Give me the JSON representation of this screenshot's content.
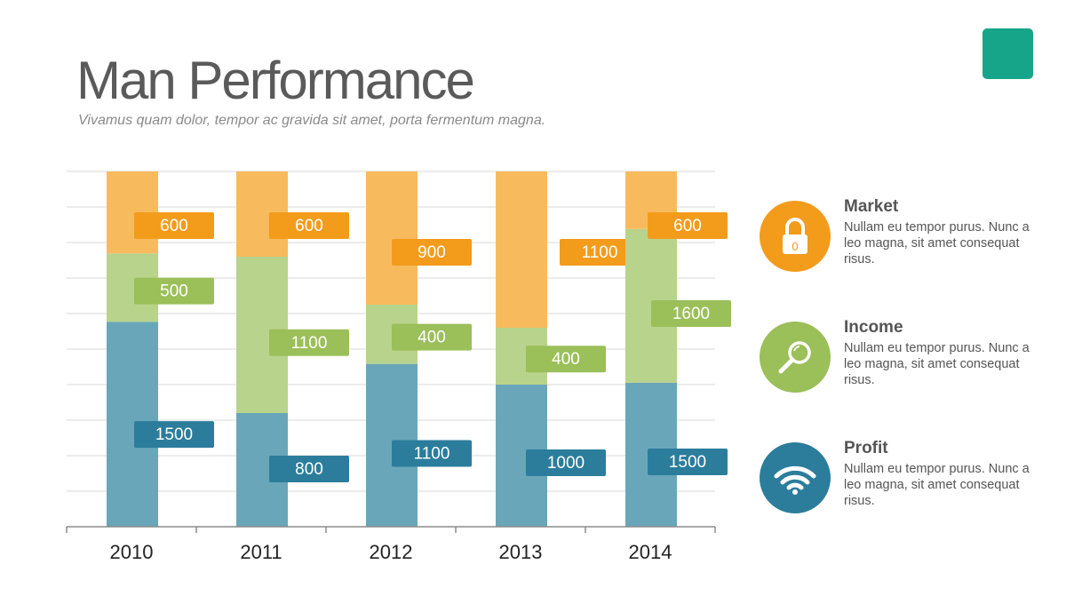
{
  "header": {
    "title": "Man Performance",
    "subtitle": "Vivamus quam dolor, tempor ac gravida sit amet, porta fermentum magna."
  },
  "colors": {
    "blue_bar": "#6aa6b9",
    "blue_label": "#2b7d9b",
    "green_bar": "#b8d38b",
    "green_label": "#9bbf59",
    "orange_bar": "#f7bb5e",
    "orange_label": "#f39b1b",
    "accent_square": "#17a589",
    "grid": "#d9d9d9",
    "axis": "#8c8c8c"
  },
  "legend": [
    {
      "title": "Market",
      "description": "Nullam eu tempor purus. Nunc a leo magna, sit amet consequat risus.",
      "icon": "lock-icon",
      "color": "#f39b1b"
    },
    {
      "title": "Income",
      "description": "Nullam eu tempor purus. Nunc a leo magna, sit amet consequat risus.",
      "icon": "magnifier-icon",
      "color": "#9bbf59"
    },
    {
      "title": "Profit",
      "description": "Nullam eu tempor purus. Nunc a leo magna, sit amet consequat risus.",
      "icon": "wifi-icon",
      "color": "#2b7d9b"
    }
  ],
  "chart_data": {
    "type": "bar",
    "stacked": true,
    "categories": [
      "2010",
      "2011",
      "2012",
      "2013",
      "2014"
    ],
    "series": [
      {
        "values": [
          1500,
          800,
          1100,
          1000,
          1500
        ],
        "color": "#6aa6b9"
      },
      {
        "values": [
          500,
          1100,
          400,
          400,
          1600
        ],
        "color": "#b8d38b"
      },
      {
        "values": [
          600,
          600,
          900,
          1100,
          600
        ],
        "color": "#f7bb5e"
      }
    ],
    "grid": true,
    "legend_placement": "right"
  }
}
